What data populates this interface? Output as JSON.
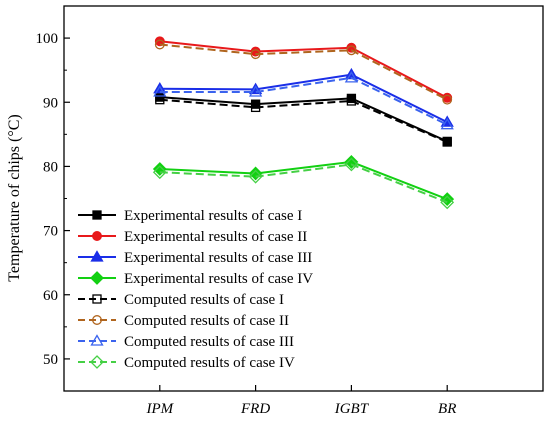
{
  "chart_data": {
    "type": "line",
    "title": "",
    "xlabel": "",
    "ylabel": "Temperature of chips (°C)",
    "categories": [
      "IPM",
      "FRD",
      "IGBT",
      "BR"
    ],
    "ylim": [
      45,
      105
    ],
    "yticks": [
      50,
      60,
      70,
      80,
      90,
      100
    ],
    "grid": false,
    "legend_position": "lower-left",
    "series": [
      {
        "name": "Experimental results of case I",
        "values": [
          90.8,
          89.7,
          90.6,
          83.9
        ],
        "color": "#000000",
        "marker": "square",
        "filled": true,
        "dashed": false
      },
      {
        "name": "Experimental results of case II",
        "values": [
          99.5,
          97.9,
          98.5,
          90.7
        ],
        "color": "#e8191b",
        "marker": "circle",
        "filled": true,
        "dashed": false
      },
      {
        "name": "Experimental results of case III",
        "values": [
          92.1,
          92.0,
          94.3,
          86.9
        ],
        "color": "#1a2ee8",
        "marker": "triangle",
        "filled": true,
        "dashed": false
      },
      {
        "name": "Experimental results of case IV",
        "values": [
          79.6,
          78.9,
          80.7,
          74.9
        ],
        "color": "#12d012",
        "marker": "diamond",
        "filled": true,
        "dashed": false
      },
      {
        "name": "Computed results of case I",
        "values": [
          90.4,
          89.2,
          90.2,
          83.8
        ],
        "color": "#000000",
        "marker": "square",
        "filled": false,
        "dashed": true
      },
      {
        "name": "Computed results of case II",
        "values": [
          99.0,
          97.5,
          98.1,
          90.4
        ],
        "color": "#b0651e",
        "marker": "circle",
        "filled": false,
        "dashed": true
      },
      {
        "name": "Computed results of case III",
        "values": [
          91.6,
          91.6,
          93.8,
          86.5
        ],
        "color": "#3b63ee",
        "marker": "triangle",
        "filled": false,
        "dashed": true
      },
      {
        "name": "Computed results of case IV",
        "values": [
          79.1,
          78.4,
          80.3,
          74.4
        ],
        "color": "#45d045",
        "marker": "diamond",
        "filled": false,
        "dashed": true
      }
    ]
  }
}
